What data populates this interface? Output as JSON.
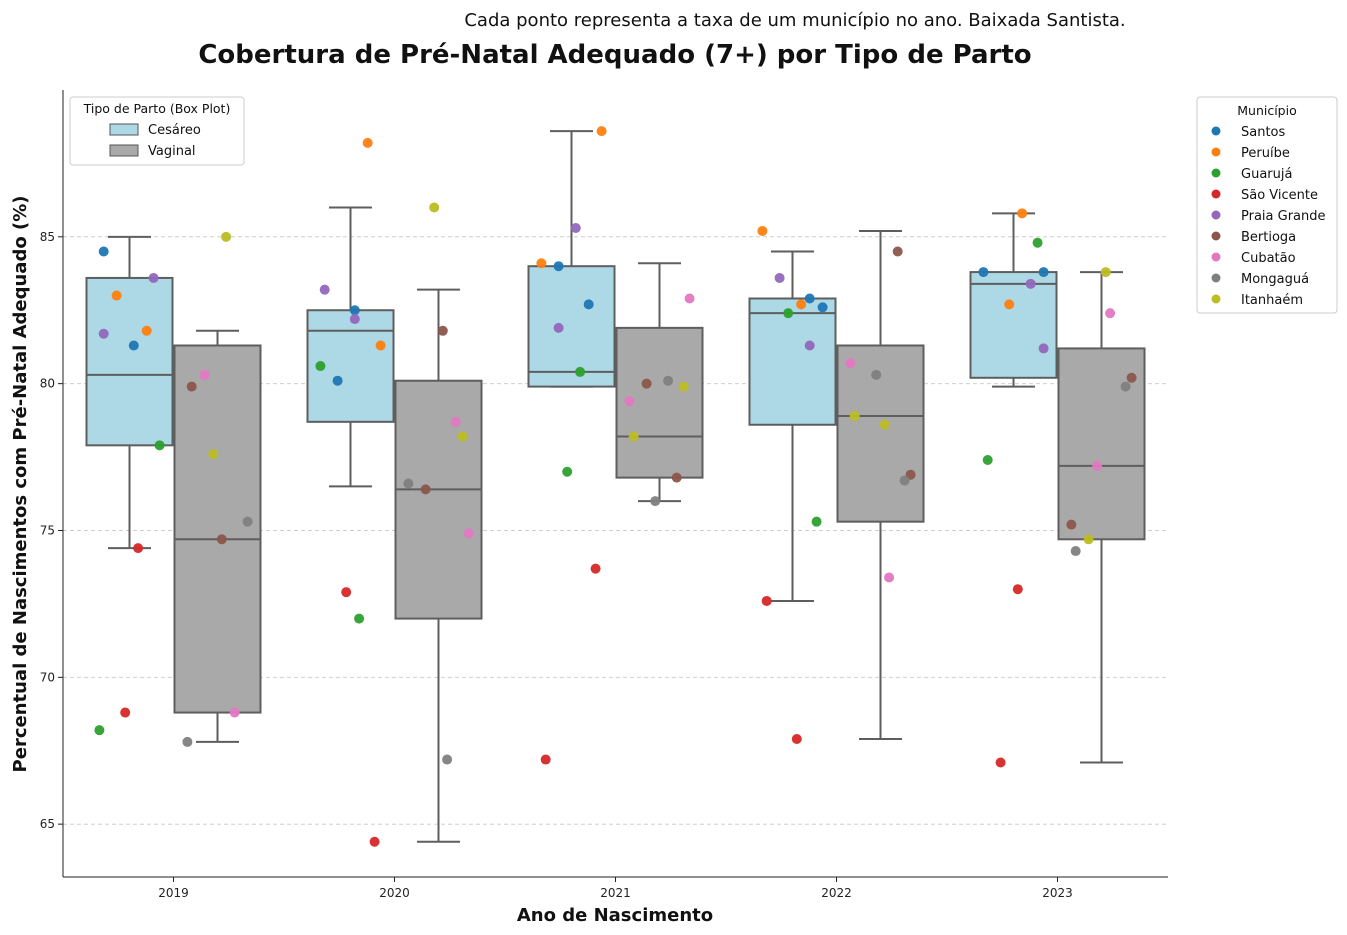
{
  "chart_data": {
    "type": "box",
    "title": "Cobertura de Pré-Natal Adequado (7+) por Tipo de Parto",
    "subtitle": "Cada ponto representa a taxa de um município no ano. Baixada Santista.",
    "xlabel": "Ano de Nascimento",
    "ylabel": "Percentual de Nascimentos com Pré-Natal Adequado (%)",
    "ylim": [
      63.2,
      90.0
    ],
    "yticks": [
      65,
      70,
      75,
      80,
      85
    ],
    "grid": "y",
    "categories": [
      "2019",
      "2020",
      "2021",
      "2022",
      "2023"
    ],
    "box_legend": {
      "title": "Tipo de Parto (Box Plot)",
      "location": "top-left",
      "entries": [
        {
          "name": "Cesáreo",
          "color": "#add8e6"
        },
        {
          "name": "Vaginal",
          "color": "#a9a9a9"
        }
      ]
    },
    "point_legend": {
      "title": "Município",
      "location": "outside-right",
      "entries": [
        {
          "name": "Santos",
          "color": "#1f77b4"
        },
        {
          "name": "Peruíbe",
          "color": "#ff7f0e"
        },
        {
          "name": "Guarujá",
          "color": "#2ca02c"
        },
        {
          "name": "São Vicente",
          "color": "#d62728"
        },
        {
          "name": "Praia Grande",
          "color": "#9467bd"
        },
        {
          "name": "Bertioga",
          "color": "#8c564b"
        },
        {
          "name": "Cubatão",
          "color": "#e377c2"
        },
        {
          "name": "Mongaguá",
          "color": "#7f7f7f"
        },
        {
          "name": "Itanhaém",
          "color": "#bcbd22"
        }
      ]
    },
    "box_series": [
      {
        "name": "Cesáreo",
        "boxes": [
          {
            "whislo": 74.4,
            "q1": 77.9,
            "med": 80.3,
            "q3": 83.6,
            "whishi": 85.0
          },
          {
            "whislo": 76.5,
            "q1": 78.7,
            "med": 81.8,
            "q3": 82.5,
            "whishi": 86.0
          },
          {
            "whislo": 79.9,
            "q1": 79.9,
            "med": 80.4,
            "q3": 84.0,
            "whishi": 88.6
          },
          {
            "whislo": 72.6,
            "q1": 78.6,
            "med": 82.4,
            "q3": 82.9,
            "whishi": 84.5
          },
          {
            "whislo": 79.9,
            "q1": 80.2,
            "med": 83.4,
            "q3": 83.8,
            "whishi": 85.8
          }
        ]
      },
      {
        "name": "Vaginal",
        "boxes": [
          {
            "whislo": 67.8,
            "q1": 68.8,
            "med": 74.7,
            "q3": 81.3,
            "whishi": 81.8
          },
          {
            "whislo": 64.4,
            "q1": 72.0,
            "med": 76.4,
            "q3": 80.1,
            "whishi": 83.2
          },
          {
            "whislo": 76.0,
            "q1": 76.8,
            "med": 78.2,
            "q3": 81.9,
            "whishi": 84.1
          },
          {
            "whislo": 67.9,
            "q1": 75.3,
            "med": 78.9,
            "q3": 81.3,
            "whishi": 85.2
          },
          {
            "whislo": 67.1,
            "q1": 74.7,
            "med": 77.2,
            "q3": 81.2,
            "whishi": 83.8
          }
        ]
      }
    ],
    "points": {
      "Cesáreo": {
        "2019": {
          "Santos": [
            84.5,
            81.3
          ],
          "Peruíbe": [
            83.0,
            81.8
          ],
          "Guarujá": [
            77.9,
            68.2
          ],
          "São Vicente": [
            74.4,
            68.8
          ],
          "Praia Grande": [
            83.6,
            81.7
          ]
        },
        "2020": {
          "Santos": [
            82.5,
            80.1
          ],
          "Peruíbe": [
            88.2,
            81.3
          ],
          "Guarujá": [
            80.6,
            72.0
          ],
          "São Vicente": [
            72.9,
            64.4
          ],
          "Praia Grande": [
            83.2,
            82.2
          ]
        },
        "2021": {
          "Santos": [
            84.0,
            82.7
          ],
          "Peruíbe": [
            88.6,
            84.1
          ],
          "Guarujá": [
            80.4,
            77.0
          ],
          "São Vicente": [
            73.7,
            67.2
          ],
          "Praia Grande": [
            85.3,
            81.9
          ]
        },
        "2022": {
          "Santos": [
            82.9,
            82.6
          ],
          "Peruíbe": [
            85.2,
            82.7
          ],
          "Guarujá": [
            82.4,
            75.3
          ],
          "São Vicente": [
            72.6,
            67.9
          ],
          "Praia Grande": [
            83.6,
            81.3
          ]
        },
        "2023": {
          "Santos": [
            83.8,
            83.8
          ],
          "Peruíbe": [
            85.8,
            82.7
          ],
          "Guarujá": [
            84.8,
            77.4
          ],
          "São Vicente": [
            73.0,
            67.1
          ],
          "Praia Grande": [
            83.4,
            81.2
          ]
        }
      },
      "Vaginal": {
        "2019": {
          "Bertioga": [
            79.9,
            74.7
          ],
          "Cubatão": [
            80.3,
            68.8
          ],
          "Mongaguá": [
            75.3,
            67.8
          ],
          "Itanhaém": [
            85.0,
            77.6
          ]
        },
        "2020": {
          "Bertioga": [
            81.8,
            76.4
          ],
          "Cubatão": [
            78.7,
            74.9
          ],
          "Mongaguá": [
            76.6,
            67.2
          ],
          "Itanhaém": [
            86.0,
            78.2
          ]
        },
        "2021": {
          "Bertioga": [
            80.0,
            76.8
          ],
          "Cubatão": [
            82.9,
            79.4
          ],
          "Mongaguá": [
            80.1,
            76.0
          ],
          "Itanhaém": [
            79.9,
            78.2
          ]
        },
        "2022": {
          "Bertioga": [
            84.5,
            76.9
          ],
          "Cubatão": [
            80.7,
            73.4
          ],
          "Mongaguá": [
            80.3,
            76.7
          ],
          "Itanhaém": [
            78.9,
            78.6
          ]
        },
        "2023": {
          "Bertioga": [
            80.2,
            75.2
          ],
          "Cubatão": [
            82.4,
            77.2
          ],
          "Mongaguá": [
            79.9,
            74.3
          ],
          "Itanhaém": [
            83.8,
            74.7
          ]
        }
      }
    }
  }
}
